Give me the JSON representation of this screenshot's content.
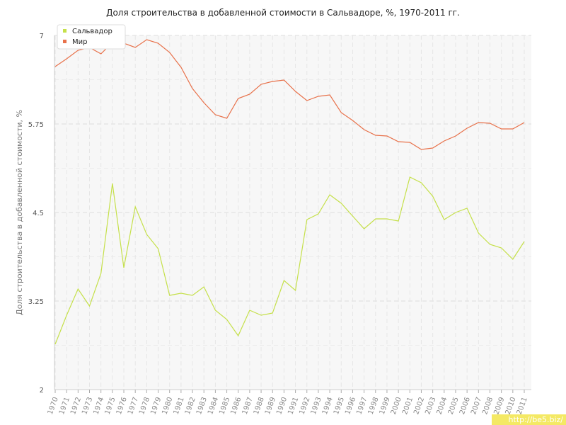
{
  "chart_data": {
    "type": "line",
    "title": "Доля строительства в добавленной стоимости в Сальвадоре, %, 1970-2011 гг.",
    "ylabel": "Доля строительства в добавленной стоимости, %",
    "xlabel": "",
    "ylim": [
      2,
      7
    ],
    "yticks": [
      "2",
      "3.25",
      "4.5",
      "5.75",
      "7"
    ],
    "grid": true,
    "legend_position": "top-left",
    "x": [
      "1970",
      "1971",
      "1972",
      "1973",
      "1974",
      "1975",
      "1976",
      "1977",
      "1978",
      "1979",
      "1980",
      "1981",
      "1982",
      "1983",
      "1984",
      "1985",
      "1986",
      "1987",
      "1988",
      "1989",
      "1990",
      "1991",
      "1992",
      "1993",
      "1994",
      "1995",
      "1996",
      "1997",
      "1998",
      "1999",
      "2000",
      "2001",
      "2002",
      "2003",
      "2004",
      "2005",
      "2006",
      "2007",
      "2008",
      "2009",
      "2010",
      "2011"
    ],
    "series": [
      {
        "name": "Сальвадор",
        "color": "#c5e04a",
        "values": [
          2.64,
          3.05,
          3.42,
          3.18,
          3.64,
          4.91,
          3.72,
          4.58,
          4.19,
          3.99,
          3.33,
          3.36,
          3.33,
          3.45,
          3.12,
          2.99,
          2.76,
          3.12,
          3.05,
          3.08,
          3.54,
          3.4,
          4.4,
          4.48,
          4.75,
          4.63,
          4.45,
          4.27,
          4.41,
          4.41,
          4.38,
          5.0,
          4.92,
          4.73,
          4.4,
          4.5,
          4.56,
          4.21,
          4.05,
          4.0,
          3.84,
          4.09
        ]
      },
      {
        "name": "Мир",
        "color": "#e8714a",
        "values": [
          6.56,
          6.67,
          6.79,
          6.83,
          6.74,
          6.9,
          6.89,
          6.83,
          6.94,
          6.89,
          6.76,
          6.55,
          6.25,
          6.05,
          5.88,
          5.83,
          6.11,
          6.17,
          6.31,
          6.35,
          6.37,
          6.21,
          6.08,
          6.14,
          6.16,
          5.91,
          5.8,
          5.67,
          5.59,
          5.58,
          5.5,
          5.49,
          5.39,
          5.41,
          5.51,
          5.58,
          5.69,
          5.77,
          5.76,
          5.68,
          5.68,
          5.77
        ]
      }
    ]
  },
  "watermark": "http://be5.biz/"
}
